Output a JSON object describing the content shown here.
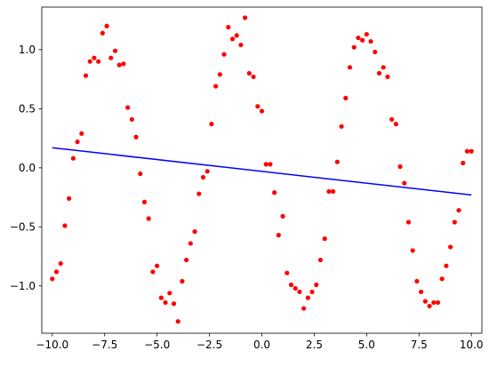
{
  "chart_data": {
    "type": "scatter",
    "title": "",
    "xlabel": "",
    "ylabel": "",
    "xlim": [
      -10.5,
      10.5
    ],
    "ylim": [
      -1.4,
      1.36
    ],
    "grid": false,
    "x_ticks": [
      -10.0,
      -7.5,
      -5.0,
      -2.5,
      0.0,
      2.5,
      5.0,
      7.5,
      10.0
    ],
    "x_tick_labels": [
      "−10.0",
      "−7.5",
      "−5.0",
      "−2.5",
      "0.0",
      "2.5",
      "5.0",
      "7.5",
      "10.0"
    ],
    "y_ticks": [
      -1.0,
      -0.5,
      0.0,
      0.5,
      1.0
    ],
    "y_tick_labels": [
      "−1.0",
      "−0.5",
      "0.0",
      "0.5",
      "1.0"
    ],
    "series": [
      {
        "kind": "scatter",
        "color": "#ff0000",
        "points": [
          [
            -10.0,
            -0.94
          ],
          [
            -9.8,
            -0.88
          ],
          [
            -9.6,
            -0.81
          ],
          [
            -9.4,
            -0.49
          ],
          [
            -9.2,
            -0.26
          ],
          [
            -9.0,
            0.08
          ],
          [
            -8.8,
            0.22
          ],
          [
            -8.6,
            0.29
          ],
          [
            -8.4,
            0.78
          ],
          [
            -8.2,
            0.9
          ],
          [
            -8.0,
            0.93
          ],
          [
            -7.8,
            0.9
          ],
          [
            -7.6,
            1.14
          ],
          [
            -7.4,
            1.2
          ],
          [
            -7.2,
            0.93
          ],
          [
            -7.0,
            0.99
          ],
          [
            -6.8,
            0.87
          ],
          [
            -6.6,
            0.88
          ],
          [
            -6.4,
            0.51
          ],
          [
            -6.2,
            0.41
          ],
          [
            -6.0,
            0.26
          ],
          [
            -5.8,
            -0.05
          ],
          [
            -5.6,
            -0.29
          ],
          [
            -5.4,
            -0.43
          ],
          [
            -5.2,
            -0.88
          ],
          [
            -5.0,
            -0.83
          ],
          [
            -4.8,
            -1.1
          ],
          [
            -4.6,
            -1.14
          ],
          [
            -4.4,
            -1.06
          ],
          [
            -4.2,
            -1.15
          ],
          [
            -4.0,
            -1.3
          ],
          [
            -3.8,
            -0.96
          ],
          [
            -3.6,
            -0.78
          ],
          [
            -3.4,
            -0.64
          ],
          [
            -3.2,
            -0.54
          ],
          [
            -3.0,
            -0.22
          ],
          [
            -2.8,
            -0.08
          ],
          [
            -2.6,
            -0.03
          ],
          [
            -2.4,
            0.37
          ],
          [
            -2.2,
            0.69
          ],
          [
            -2.0,
            0.79
          ],
          [
            -1.8,
            0.96
          ],
          [
            -1.6,
            1.19
          ],
          [
            -1.4,
            1.09
          ],
          [
            -1.2,
            1.12
          ],
          [
            -1.0,
            1.04
          ],
          [
            -0.8,
            1.27
          ],
          [
            -0.6,
            0.8
          ],
          [
            -0.4,
            0.77
          ],
          [
            -0.2,
            0.52
          ],
          [
            0.0,
            0.48
          ],
          [
            0.2,
            0.03
          ],
          [
            0.4,
            0.03
          ],
          [
            0.6,
            -0.21
          ],
          [
            0.8,
            -0.57
          ],
          [
            1.0,
            -0.41
          ],
          [
            1.2,
            -0.89
          ],
          [
            1.4,
            -0.99
          ],
          [
            1.6,
            -1.02
          ],
          [
            1.8,
            -1.05
          ],
          [
            2.0,
            -1.19
          ],
          [
            2.2,
            -1.1
          ],
          [
            2.4,
            -1.05
          ],
          [
            2.6,
            -0.99
          ],
          [
            2.8,
            -0.78
          ],
          [
            3.0,
            -0.6
          ],
          [
            3.2,
            -0.2
          ],
          [
            3.4,
            -0.2
          ],
          [
            3.6,
            0.05
          ],
          [
            3.8,
            0.35
          ],
          [
            4.0,
            0.59
          ],
          [
            4.2,
            0.85
          ],
          [
            4.4,
            1.02
          ],
          [
            4.6,
            1.1
          ],
          [
            4.8,
            1.08
          ],
          [
            5.0,
            1.13
          ],
          [
            5.2,
            1.07
          ],
          [
            5.4,
            0.98
          ],
          [
            5.6,
            0.8
          ],
          [
            5.8,
            0.85
          ],
          [
            6.0,
            0.77
          ],
          [
            6.2,
            0.41
          ],
          [
            6.4,
            0.37
          ],
          [
            6.6,
            0.01
          ],
          [
            6.8,
            -0.13
          ],
          [
            7.0,
            -0.46
          ],
          [
            7.2,
            -0.7
          ],
          [
            7.4,
            -0.96
          ],
          [
            7.6,
            -1.05
          ],
          [
            7.8,
            -1.13
          ],
          [
            8.0,
            -1.17
          ],
          [
            8.2,
            -1.14
          ],
          [
            8.4,
            -1.14
          ],
          [
            8.6,
            -0.94
          ],
          [
            8.8,
            -0.83
          ],
          [
            9.0,
            -0.67
          ],
          [
            9.2,
            -0.46
          ],
          [
            9.4,
            -0.36
          ],
          [
            9.6,
            0.04
          ],
          [
            9.8,
            0.14
          ],
          [
            10.0,
            0.14
          ]
        ]
      },
      {
        "kind": "line",
        "color": "#0000ff",
        "points": [
          [
            -10.0,
            0.17
          ],
          [
            10.0,
            -0.23
          ]
        ]
      }
    ]
  }
}
